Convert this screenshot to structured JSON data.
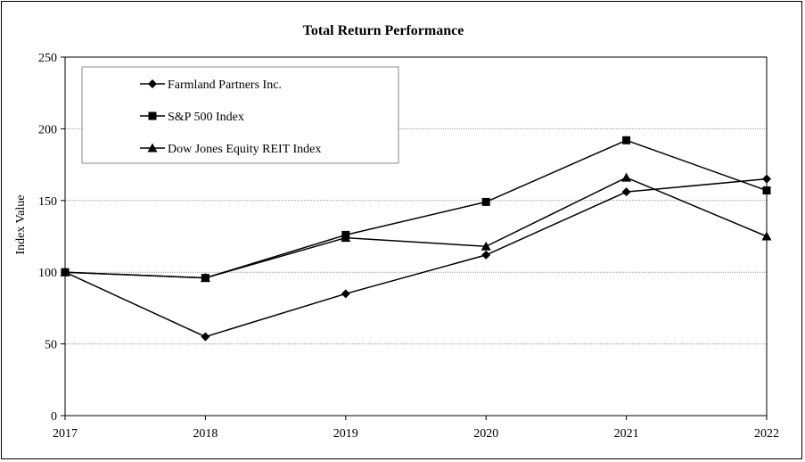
{
  "chart_data": {
    "type": "line",
    "title": "Total Return Performance",
    "xlabel": "",
    "ylabel": "Index Value",
    "categories": [
      "2017",
      "2018",
      "2019",
      "2020",
      "2021",
      "2022"
    ],
    "ylim": [
      0,
      250
    ],
    "yticks": [
      "0",
      "50",
      "100",
      "150",
      "200",
      "250"
    ],
    "grid": "horizontal dotted",
    "legend_position": "top-left",
    "series": [
      {
        "name": "Farmland Partners Inc.",
        "marker": "diamond",
        "color": "#000000",
        "values": [
          100,
          55,
          85,
          112,
          156,
          165
        ]
      },
      {
        "name": "S&P 500 Index",
        "marker": "square",
        "color": "#000000",
        "values": [
          100,
          96,
          126,
          149,
          192,
          157
        ]
      },
      {
        "name": "Dow Jones Equity REIT Index",
        "marker": "triangle",
        "color": "#000000",
        "values": [
          100,
          96,
          124,
          118,
          166,
          125
        ]
      }
    ]
  }
}
